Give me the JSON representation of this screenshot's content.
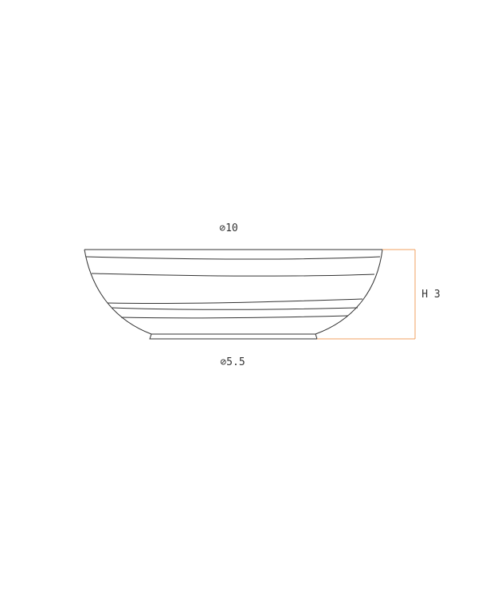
{
  "drawing": {
    "top_diameter_label": "⊘10",
    "bottom_diameter_label": "⊘5.5",
    "height_label": "H 3"
  },
  "colors": {
    "outline": "#333333",
    "dimension_line": "#f0a060",
    "background": "#ffffff"
  }
}
